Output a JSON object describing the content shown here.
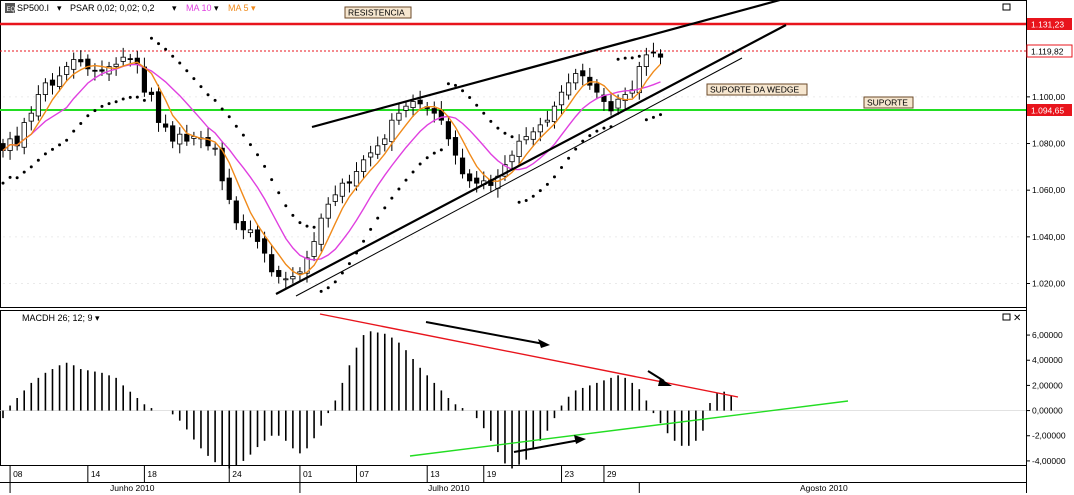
{
  "header": {
    "symbol": "SP500.I",
    "symbol_icon": "eq-icon",
    "psar_label": "PSAR 0,02; 0,02; 0,2",
    "ma10_label": "MA 10",
    "ma5_label": "MA 5",
    "macd_label": "MACDH 26; 12; 9"
  },
  "annotations": {
    "resistance": "RESISTENCIA",
    "wedge_support": "SUPORTE DA WEDGE",
    "support": "SUPORTE"
  },
  "price_labels": {
    "resistance_level": "1.131,23",
    "last_price": "1.119,82",
    "support_level": "1.094,65"
  },
  "colors": {
    "resistance": "#e8141c",
    "support": "#22dd22",
    "ma10": "#e040e0",
    "ma5": "#f08a1a",
    "candle_up": "#ffffff",
    "candle_down": "#000000",
    "macd_down_trend": "#e8141c",
    "macd_up_trend": "#22dd22"
  },
  "axis": {
    "price_ticks": [
      "1.020,00",
      "1.040,00",
      "1.060,00",
      "1.080,00",
      "1.100,00"
    ],
    "macd_ticks": [
      "6,00000",
      "4,00000",
      "2,00000",
      "0,00000",
      "-2,00000",
      "-4,00000"
    ],
    "day_ticks": [
      "08",
      "14",
      "18",
      "24",
      "01",
      "07",
      "13",
      "19",
      "23",
      "29"
    ],
    "month_labels": [
      "Junho 2010",
      "Julho 2010",
      "Agosto 2010"
    ]
  },
  "chart_data": [
    {
      "type": "candlestick",
      "title": "",
      "series_close": [
        1077,
        1082,
        1079,
        1089,
        1093,
        1101,
        1106,
        1105,
        1109,
        1113,
        1116,
        1115,
        1112,
        1111,
        1111,
        1113,
        1114,
        1117,
        1116,
        1114,
        1102,
        1101,
        1089,
        1087,
        1081,
        1084,
        1081,
        1083,
        1082,
        1079,
        1078,
        1064,
        1056,
        1046,
        1043,
        1043,
        1038,
        1033,
        1025,
        1023,
        1022,
        1023,
        1025,
        1031,
        1038,
        1048,
        1054,
        1058,
        1063,
        1063,
        1068,
        1073,
        1076,
        1079,
        1082,
        1090,
        1093,
        1096,
        1098,
        1097,
        1095,
        1093,
        1090,
        1082,
        1075,
        1067,
        1064,
        1063,
        1064,
        1062,
        1066,
        1071,
        1075,
        1081,
        1083,
        1085,
        1088,
        1090,
        1096,
        1102,
        1106,
        1110,
        1109,
        1105,
        1102,
        1098,
        1094,
        1099,
        1101,
        1103,
        1113,
        1118,
        1119,
        1117
      ],
      "yrange": [
        1010,
        1135
      ],
      "levels": {
        "resistance": 1131.23,
        "support": 1094.65,
        "last": 1119.82
      }
    },
    {
      "type": "bar",
      "title": "",
      "values": [
        -0.6,
        0.4,
        1.0,
        1.6,
        2.2,
        2.6,
        3.0,
        3.3,
        3.6,
        3.8,
        3.6,
        3.3,
        3.2,
        3.1,
        3.0,
        2.8,
        2.6,
        2.0,
        1.5,
        1.0,
        0.5,
        0.2,
        0,
        0,
        -0.3,
        -0.8,
        -1.5,
        -2.3,
        -3.0,
        -3.6,
        -4.1,
        -4.4,
        -4.6,
        -4.4,
        -4.0,
        -3.5,
        -2.9,
        -2.4,
        -2.0,
        -2.0,
        -2.4,
        -3.0,
        -3.4,
        -3.0,
        -2.2,
        -1.2,
        -0.2,
        0.8,
        2.2,
        3.6,
        5.0,
        6.0,
        6.3,
        6.2,
        6.1,
        5.8,
        5.4,
        4.8,
        4.1,
        3.4,
        2.8,
        2.2,
        1.6,
        1.0,
        0.5,
        0.2,
        0,
        -0.6,
        -1.4,
        -2.4,
        -3.3,
        -4.2,
        -4.6,
        -4.3,
        -3.9,
        -3.1,
        -2.4,
        -1.6,
        -0.6,
        0.4,
        1.1,
        1.6,
        1.8,
        2.0,
        2.2,
        2.4,
        2.6,
        2.8,
        2.6,
        2.2,
        1.7,
        0.8,
        -0.2,
        -1.0,
        -1.8,
        -2.4,
        -2.8,
        -2.8,
        -2.4,
        -1.6,
        0.6,
        1.4,
        1.5,
        1.2
      ],
      "yrange": [
        -5.0,
        6.8
      ]
    }
  ]
}
